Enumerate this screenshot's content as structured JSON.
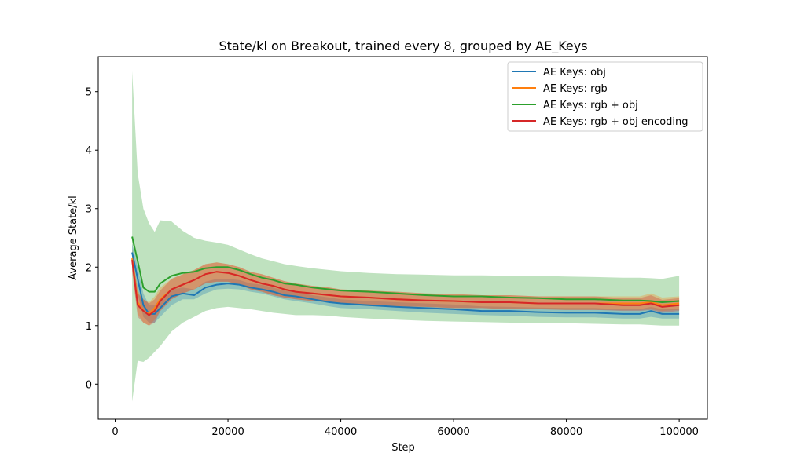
{
  "chart_data": {
    "type": "line",
    "title": "State/kl on Breakout, trained every 8, grouped by AE_Keys",
    "xlabel": "Step",
    "ylabel": "Average State/kl",
    "xlim": [
      -3000,
      105000
    ],
    "ylim": [
      -0.6,
      5.6
    ],
    "xticks": [
      0,
      20000,
      40000,
      60000,
      80000,
      100000
    ],
    "yticks": [
      0,
      1,
      2,
      3,
      4,
      5
    ],
    "grid": false,
    "legend_position": "top-right",
    "band": "shaded confidence interval around each line",
    "x": [
      3000,
      4000,
      5000,
      6000,
      7000,
      8000,
      10000,
      12000,
      14000,
      16000,
      18000,
      20000,
      22000,
      24000,
      26000,
      28000,
      30000,
      32000,
      35000,
      38000,
      40000,
      45000,
      50000,
      55000,
      60000,
      65000,
      70000,
      75000,
      80000,
      85000,
      90000,
      93000,
      95000,
      97000,
      100000
    ],
    "series": [
      {
        "name": "AE Keys: obj",
        "color": "#1f77b4",
        "values": [
          2.25,
          1.8,
          1.35,
          1.2,
          1.2,
          1.3,
          1.5,
          1.55,
          1.52,
          1.65,
          1.7,
          1.72,
          1.7,
          1.65,
          1.62,
          1.58,
          1.52,
          1.5,
          1.45,
          1.4,
          1.38,
          1.35,
          1.32,
          1.3,
          1.28,
          1.25,
          1.25,
          1.23,
          1.22,
          1.22,
          1.2,
          1.2,
          1.25,
          1.2,
          1.2
        ],
        "lower": [
          2.05,
          1.55,
          1.15,
          1.05,
          1.05,
          1.15,
          1.35,
          1.45,
          1.45,
          1.55,
          1.62,
          1.63,
          1.62,
          1.58,
          1.55,
          1.5,
          1.45,
          1.42,
          1.38,
          1.33,
          1.3,
          1.28,
          1.25,
          1.22,
          1.2,
          1.18,
          1.17,
          1.15,
          1.14,
          1.14,
          1.12,
          1.12,
          1.15,
          1.12,
          1.12
        ],
        "upper": [
          2.4,
          2.0,
          1.55,
          1.35,
          1.35,
          1.45,
          1.62,
          1.65,
          1.62,
          1.75,
          1.8,
          1.8,
          1.78,
          1.72,
          1.7,
          1.65,
          1.6,
          1.58,
          1.52,
          1.48,
          1.45,
          1.42,
          1.4,
          1.38,
          1.36,
          1.33,
          1.32,
          1.31,
          1.3,
          1.3,
          1.28,
          1.28,
          1.32,
          1.28,
          1.28
        ]
      },
      {
        "name": "AE Keys: rgb",
        "color": "#ff7f0e",
        "values": [
          2.15,
          1.4,
          1.25,
          1.2,
          1.3,
          1.45,
          1.62,
          1.7,
          1.78,
          1.88,
          1.92,
          1.9,
          1.85,
          1.78,
          1.72,
          1.68,
          1.62,
          1.58,
          1.55,
          1.52,
          1.5,
          1.48,
          1.45,
          1.43,
          1.42,
          1.4,
          1.4,
          1.38,
          1.38,
          1.38,
          1.38,
          1.38,
          1.4,
          1.35,
          1.38
        ],
        "lower": [
          1.95,
          1.2,
          1.05,
          1.0,
          1.1,
          1.25,
          1.45,
          1.55,
          1.62,
          1.72,
          1.75,
          1.75,
          1.7,
          1.62,
          1.58,
          1.52,
          1.48,
          1.45,
          1.42,
          1.4,
          1.38,
          1.35,
          1.33,
          1.32,
          1.3,
          1.3,
          1.28,
          1.28,
          1.27,
          1.27,
          1.27,
          1.27,
          1.28,
          1.25,
          1.27
        ],
        "upper": [
          2.3,
          1.6,
          1.45,
          1.4,
          1.5,
          1.65,
          1.8,
          1.88,
          1.95,
          2.05,
          2.08,
          2.05,
          2.0,
          1.92,
          1.88,
          1.82,
          1.76,
          1.72,
          1.68,
          1.65,
          1.62,
          1.6,
          1.58,
          1.55,
          1.54,
          1.52,
          1.52,
          1.5,
          1.5,
          1.5,
          1.5,
          1.5,
          1.55,
          1.48,
          1.5
        ]
      },
      {
        "name": "AE Keys: rgb + obj",
        "color": "#2ca02c",
        "values": [
          2.52,
          2.1,
          1.65,
          1.58,
          1.58,
          1.72,
          1.85,
          1.9,
          1.92,
          1.98,
          2.0,
          2.0,
          1.95,
          1.88,
          1.82,
          1.78,
          1.72,
          1.7,
          1.65,
          1.62,
          1.6,
          1.58,
          1.55,
          1.52,
          1.5,
          1.5,
          1.48,
          1.47,
          1.45,
          1.45,
          1.43,
          1.43,
          1.42,
          1.4,
          1.42
        ],
        "lower": [
          -0.3,
          0.4,
          0.38,
          0.45,
          0.55,
          0.65,
          0.9,
          1.05,
          1.15,
          1.25,
          1.3,
          1.32,
          1.3,
          1.28,
          1.25,
          1.22,
          1.2,
          1.18,
          1.18,
          1.17,
          1.15,
          1.12,
          1.1,
          1.08,
          1.07,
          1.06,
          1.05,
          1.05,
          1.04,
          1.03,
          1.02,
          1.02,
          1.01,
          1.0,
          1.0
        ],
        "upper": [
          5.35,
          3.6,
          3.0,
          2.75,
          2.6,
          2.8,
          2.78,
          2.62,
          2.5,
          2.45,
          2.42,
          2.38,
          2.3,
          2.22,
          2.15,
          2.1,
          2.05,
          2.02,
          1.98,
          1.95,
          1.93,
          1.9,
          1.88,
          1.87,
          1.86,
          1.86,
          1.85,
          1.85,
          1.84,
          1.83,
          1.82,
          1.82,
          1.81,
          1.8,
          1.85
        ]
      },
      {
        "name": "AE Keys: rgb + obj encoding",
        "color": "#d62728",
        "values": [
          2.12,
          1.35,
          1.25,
          1.18,
          1.25,
          1.42,
          1.62,
          1.7,
          1.78,
          1.88,
          1.92,
          1.9,
          1.85,
          1.78,
          1.72,
          1.68,
          1.62,
          1.58,
          1.55,
          1.52,
          1.5,
          1.48,
          1.45,
          1.43,
          1.42,
          1.4,
          1.4,
          1.38,
          1.38,
          1.38,
          1.35,
          1.35,
          1.38,
          1.32,
          1.35
        ],
        "lower": [
          1.92,
          1.15,
          1.05,
          1.0,
          1.05,
          1.25,
          1.45,
          1.55,
          1.62,
          1.72,
          1.75,
          1.75,
          1.7,
          1.62,
          1.58,
          1.52,
          1.48,
          1.45,
          1.42,
          1.4,
          1.38,
          1.35,
          1.33,
          1.32,
          1.3,
          1.3,
          1.28,
          1.28,
          1.27,
          1.27,
          1.25,
          1.25,
          1.27,
          1.22,
          1.25
        ],
        "upper": [
          2.28,
          1.55,
          1.45,
          1.38,
          1.45,
          1.6,
          1.8,
          1.88,
          1.95,
          2.05,
          2.08,
          2.05,
          2.0,
          1.92,
          1.88,
          1.82,
          1.76,
          1.72,
          1.68,
          1.65,
          1.62,
          1.6,
          1.58,
          1.55,
          1.54,
          1.52,
          1.52,
          1.5,
          1.5,
          1.5,
          1.47,
          1.47,
          1.52,
          1.44,
          1.47
        ]
      }
    ]
  }
}
